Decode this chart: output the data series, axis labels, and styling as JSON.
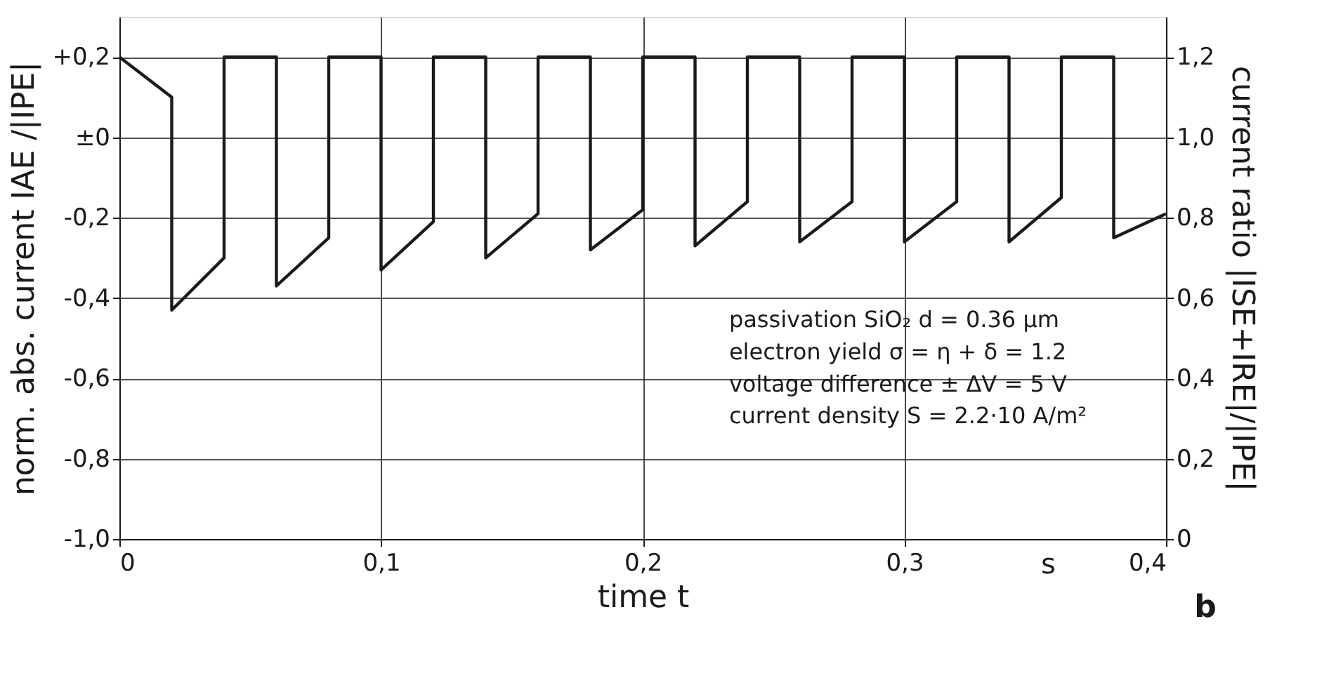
{
  "chart_data": {
    "type": "line",
    "xlabel": "time t",
    "ylabel": "norm. abs. current IAE /|IPE|",
    "y2label": "current ratio |ISE+IRE|/|IPE|",
    "series": [
      {
        "color": "#1a1a1a",
        "x": [
          0,
          0.02,
          0.02,
          0.04,
          0.04,
          0.06,
          0.06,
          0.08,
          0.08,
          0.1,
          0.1,
          0.12,
          0.12,
          0.14,
          0.14,
          0.16,
          0.16,
          0.18,
          0.18,
          0.2,
          0.2,
          0.22,
          0.22,
          0.24,
          0.24,
          0.26,
          0.26,
          0.28,
          0.28,
          0.3,
          0.3,
          0.32,
          0.32,
          0.34,
          0.34,
          0.36,
          0.36,
          0.38,
          0.38,
          0.4
        ],
        "values": [
          0.2,
          0.1,
          -0.43,
          -0.3,
          0.2,
          0.2,
          -0.37,
          -0.25,
          0.2,
          0.2,
          -0.33,
          -0.21,
          0.2,
          0.2,
          -0.3,
          -0.19,
          0.2,
          0.2,
          -0.28,
          -0.18,
          0.2,
          0.2,
          -0.27,
          -0.16,
          0.2,
          0.2,
          -0.26,
          -0.16,
          0.2,
          0.2,
          -0.26,
          -0.16,
          0.2,
          0.2,
          -0.26,
          -0.15,
          0.2,
          0.2,
          -0.25,
          -0.19
        ]
      }
    ],
    "xlim": [
      0,
      0.4
    ],
    "xticks": [
      0,
      {
        "value": 0.1,
        "label": "0,1"
      },
      {
        "value": 0.2,
        "label": "0,2"
      },
      {
        "value": 0.3,
        "label": "0,3"
      },
      {
        "value": 0.4,
        "label": "0,4"
      }
    ],
    "ylim": [
      -1.0,
      0.3
    ],
    "yticks": [
      {
        "value": 0.2,
        "label": "+0,2"
      },
      {
        "value": 0,
        "label": "±0"
      },
      {
        "value": -0.2,
        "label": "-0,2"
      },
      {
        "value": -0.4,
        "label": "-0,4"
      },
      {
        "value": -0.6,
        "label": "-0,6"
      },
      {
        "value": -0.8,
        "label": "-0,8"
      },
      {
        "value": -1.0,
        "label": "-1,0"
      }
    ],
    "y2lim": [
      0,
      1.3
    ],
    "y2ticks": [
      0,
      {
        "value": 0.2,
        "label": "0,2"
      },
      {
        "value": 0.4,
        "label": "0,4"
      },
      {
        "value": 0.6,
        "label": "0,6"
      },
      {
        "value": 0.8,
        "label": "0,8"
      },
      {
        "value": 1.0,
        "label": "1,0"
      },
      {
        "value": 1.2,
        "label": "1,2"
      }
    ],
    "grid": true,
    "marker": "none",
    "line_style": "solid",
    "annotations": [
      "passivation SiO₂ d = 0.36 µm",
      "electron yield σ = η + δ = 1.2",
      "voltage difference ± ΔV = 5 V",
      "current density S = 2.2·10 A/m²",
      "s",
      "b"
    ]
  }
}
